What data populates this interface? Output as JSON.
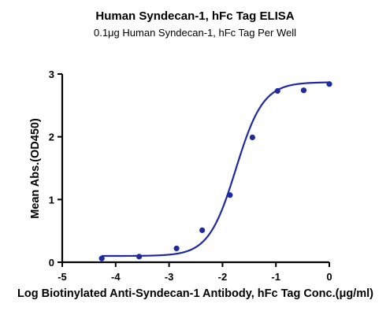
{
  "chart_data": {
    "type": "scatter",
    "title": "Human Syndecan-1, hFc Tag ELISA",
    "subtitle": "0.1μg Human Syndecan-1, hFc Tag Per Well",
    "xlabel": "Log Biotinylated Anti-Syndecan-1 Antibody, hFc Tag Conc.(μg/ml)",
    "ylabel": "Mean Abs.(OD450)",
    "xlim": [
      -5,
      0
    ],
    "ylim": [
      0,
      3
    ],
    "x_ticks": [
      -5,
      -4,
      -3,
      -2,
      -1,
      0
    ],
    "y_ticks": [
      0,
      1,
      2,
      3
    ],
    "grid": false,
    "legend": "none",
    "color": "#1f2aa0",
    "series": [
      {
        "x": [
          -4.26,
          -3.56,
          -2.86,
          -2.38,
          -1.86,
          -1.44,
          -0.97,
          -0.48,
          0.0
        ],
        "y": [
          0.06,
          0.09,
          0.22,
          0.51,
          1.07,
          1.99,
          2.73,
          2.74,
          2.84
        ]
      }
    ],
    "fit_curve": {
      "type": "4PL",
      "bottom": 0.1,
      "top": 2.87,
      "ec50_log": -1.75,
      "hill": 1.7,
      "x_range": [
        -4.26,
        0.0
      ]
    }
  }
}
